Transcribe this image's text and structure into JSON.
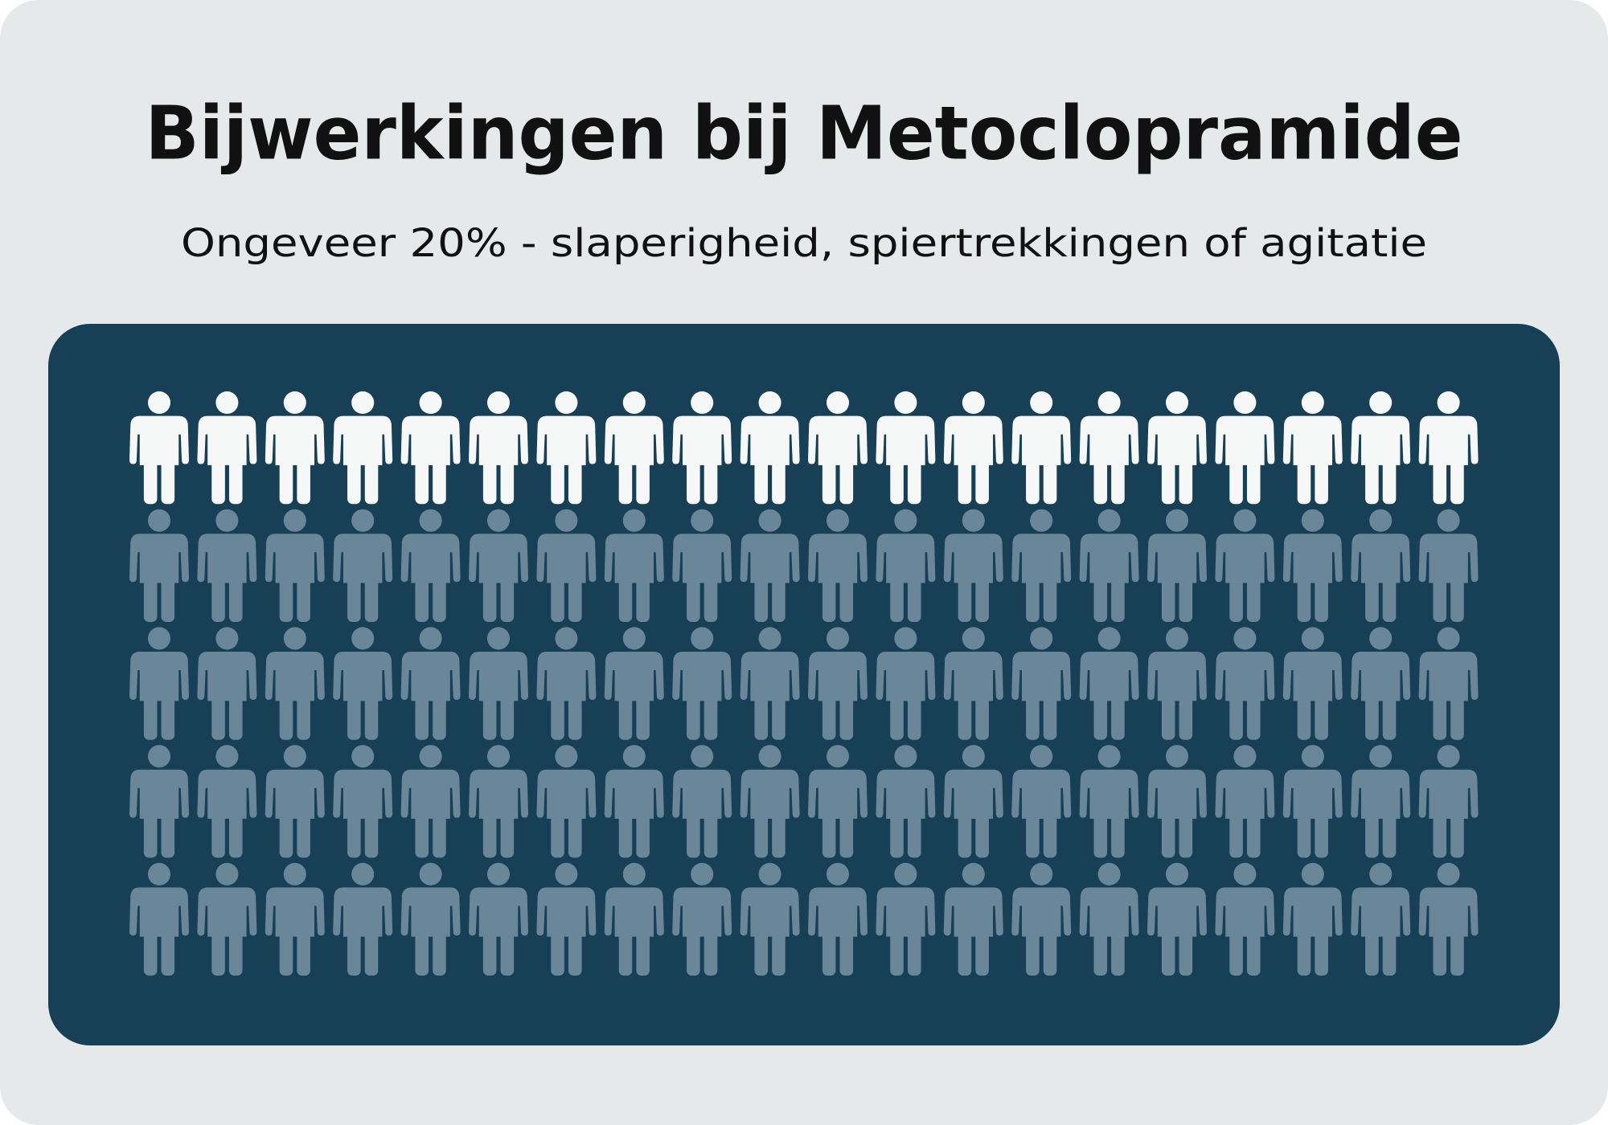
{
  "chart_data": {
    "type": "pictograph",
    "title": "Bijwerkingen bij Metoclopramide",
    "subtitle": "Ongeveer 20% - slaperigheid, spiertrekkingen of agitatie",
    "values": [
      20,
      80
    ],
    "colors": [
      "#f6f7f7",
      "#6a8799"
    ]
  }
}
